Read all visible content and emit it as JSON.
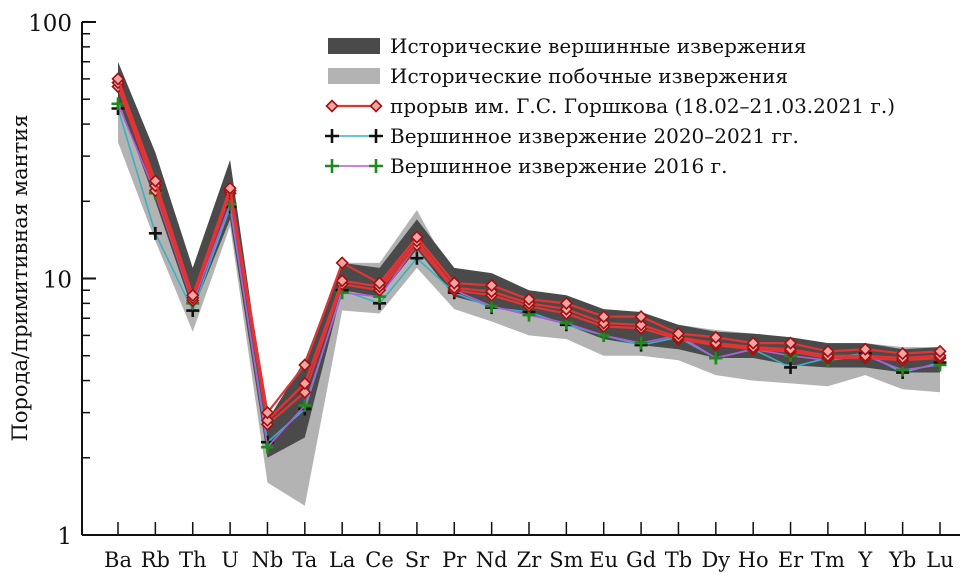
{
  "chart_data": {
    "type": "line",
    "y_scale": "log",
    "ylim": [
      1,
      100
    ],
    "yticks": [
      1,
      10,
      100
    ],
    "ytick_labels": [
      "1",
      "10",
      "100"
    ],
    "ylabel": "Порода/примитивная мантия",
    "xlabel": "",
    "grid": false,
    "legend_position": "top-right",
    "categories": [
      "Ba",
      "Rb",
      "Th",
      "U",
      "Nb",
      "Ta",
      "La",
      "Ce",
      "Sr",
      "Pr",
      "Nd",
      "Zr",
      "Sm",
      "Eu",
      "Gd",
      "Tb",
      "Dy",
      "Ho",
      "Er",
      "Tm",
      "Y",
      "Yb",
      "Lu"
    ],
    "bands": [
      {
        "name": "Исторические вершинные извержения",
        "color": "#4a4a4a",
        "upper": [
          70,
          31,
          11,
          29,
          2.8,
          4.8,
          11.5,
          11,
          17,
          11,
          10.5,
          9,
          8.6,
          7.6,
          7.4,
          6.6,
          6.2,
          6.1,
          5.9,
          5.6,
          5.6,
          5.3,
          5.4
        ],
        "lower": [
          50,
          20,
          7.5,
          17,
          2.0,
          2.4,
          9,
          8.5,
          13,
          8.5,
          7.8,
          7.2,
          6.6,
          5.8,
          5.5,
          5.3,
          4.9,
          4.9,
          4.6,
          4.5,
          4.5,
          4.3,
          4.3
        ]
      },
      {
        "name": "Исторические побочные извержения",
        "color": "#b3b3b3",
        "upper": [
          62,
          26,
          10,
          25,
          2.6,
          4.2,
          11.5,
          11.5,
          18.5,
          10,
          9.5,
          8.5,
          8.2,
          7.2,
          7.2,
          6.6,
          6.3,
          6.1,
          5.9,
          5.6,
          5.6,
          5.4,
          5.4
        ],
        "lower": [
          34,
          14,
          6.2,
          16,
          1.6,
          1.3,
          7.5,
          7.3,
          11,
          7.6,
          6.8,
          6.0,
          5.8,
          5.0,
          5.0,
          4.8,
          4.2,
          4.0,
          3.9,
          3.8,
          4.2,
          3.7,
          3.6
        ]
      }
    ],
    "series": [
      {
        "name": "прорыв им. Г.С. Горшкова (18.02–21.03.2021 г.)",
        "color": "#e23434",
        "marker": "diamond",
        "values": [
          58,
          23,
          8.4,
          22,
          2.8,
          3.9,
          9.8,
          9.3,
          14,
          9.2,
          8.9,
          8.0,
          7.6,
          6.7,
          6.6,
          5.9,
          5.6,
          5.4,
          5.3,
          5.0,
          5.0,
          4.9,
          5.0
        ]
      },
      {
        "name": "",
        "color": "#e23434",
        "marker": "diamond",
        "values": [
          60,
          24,
          8.6,
          22.5,
          3.0,
          4.6,
          11.5,
          9.6,
          14.5,
          9.6,
          9.4,
          8.3,
          8.0,
          7.1,
          7.1,
          6.1,
          5.9,
          5.6,
          5.6,
          5.2,
          5.3,
          5.1,
          5.2
        ]
      },
      {
        "name": "",
        "color": "#e23434",
        "marker": "diamond",
        "values": [
          56,
          22,
          8.2,
          21.5,
          2.7,
          3.6,
          9.5,
          9.0,
          13.5,
          9.0,
          8.6,
          7.8,
          7.3,
          6.5,
          6.4,
          5.8,
          5.5,
          5.3,
          5.2,
          4.9,
          4.9,
          4.8,
          4.9
        ]
      },
      {
        "name": "Вершинное извержение 2020–2021 гг.",
        "color": "#34b3c3",
        "marker": "plus",
        "values": [
          46,
          15,
          7.5,
          19,
          2.3,
          3.1,
          9.0,
          8.0,
          12,
          8.8,
          7.7,
          7.4,
          6.6,
          6.0,
          5.5,
          5.9,
          4.9,
          5.3,
          4.5,
          4.9,
          5.1,
          4.3,
          4.7
        ]
      },
      {
        "name": "Вершинное извержение 2016 г.",
        "color": "#b35ad6",
        "marker": "plus",
        "values": [
          48,
          21.5,
          8.0,
          19.5,
          2.2,
          3.2,
          8.8,
          8.5,
          13.5,
          9.0,
          7.8,
          7.2,
          6.7,
          6.0,
          5.6,
          6.0,
          4.9,
          5.3,
          5.0,
          4.8,
          5.0,
          4.4,
          4.6
        ]
      }
    ],
    "legend": [
      {
        "kind": "band",
        "color": "#4a4a4a",
        "label": "Исторические вершинные извержения"
      },
      {
        "kind": "band",
        "color": "#b3b3b3",
        "label": "Исторические побочные извержения"
      },
      {
        "kind": "diamond",
        "color": "#d22a2a",
        "label": "прорыв им. Г.С. Горшкова (18.02–21.03.2021 г.)"
      },
      {
        "kind": "plus",
        "color": "#34b3c3",
        "label": "Вершинное извержение 2020–2021 гг."
      },
      {
        "kind": "plus",
        "color": "#1f8a1f",
        "label": "Вершинное извержение 2016 г."
      }
    ]
  }
}
